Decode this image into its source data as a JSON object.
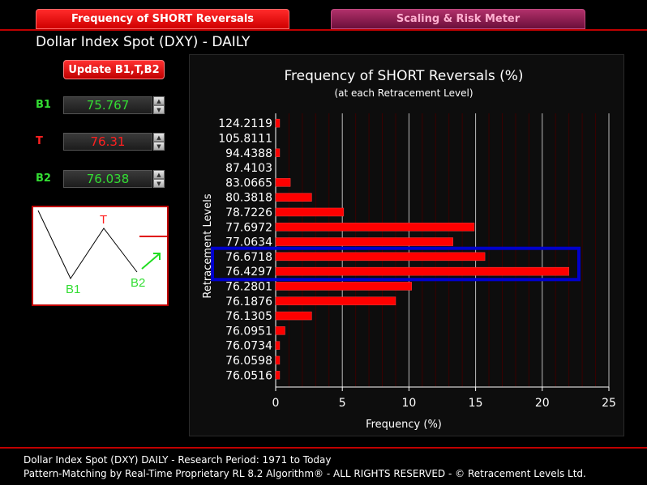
{
  "tabs": [
    {
      "label": "Frequency of SHORT Reversals"
    },
    {
      "label": "Scaling & Risk Meter"
    }
  ],
  "page_title": "Dollar Index Spot (DXY) - DAILY",
  "update_button": "Update B1,T,B2",
  "fields": {
    "b1": {
      "label": "B1",
      "value": "75.767",
      "color": "#33dd33"
    },
    "t": {
      "label": "T",
      "value": "76.31",
      "color": "#ff2020"
    },
    "b2": {
      "label": "B2",
      "value": "76.038",
      "color": "#33dd33"
    }
  },
  "pattern": {
    "b1": "B1",
    "t": "T",
    "b2": "B2"
  },
  "chart_data": {
    "type": "bar",
    "orientation": "horizontal",
    "title": "Frequency of SHORT Reversals (%)",
    "subtitle": "(at each Retracement Level)",
    "xlabel": "Frequency (%)",
    "ylabel": "Retracement Levels",
    "xlim": [
      0,
      25
    ],
    "xticks": [
      "0",
      "5",
      "10",
      "15",
      "20",
      "25"
    ],
    "categories": [
      "124.2119",
      "105.8111",
      "94.4388",
      "87.4103",
      "83.0665",
      "80.3818",
      "78.7226",
      "77.6972",
      "77.0634",
      "76.6718",
      "76.4297",
      "76.2801",
      "76.1876",
      "76.1305",
      "76.0951",
      "76.0734",
      "76.0598",
      "76.0516"
    ],
    "values": [
      0.3,
      0,
      0.3,
      0,
      1.1,
      2.7,
      5.1,
      14.9,
      13.3,
      15.7,
      22.0,
      10.2,
      9.0,
      2.7,
      0.7,
      0.3,
      0.3,
      0.3
    ],
    "highlighted": [
      "76.6718",
      "76.4297"
    ],
    "bar_color": "#ff0000",
    "highlight_color": "#0000cc",
    "grid": true
  },
  "footer": {
    "line1": "Dollar Index Spot (DXY) DAILY - Research Period: 1971 to Today",
    "line2": "Pattern-Matching by Real-Time Proprietary RL 8.2 Algorithm®  -  ALL RIGHTS RESERVED - © Retracement Levels Ltd."
  }
}
